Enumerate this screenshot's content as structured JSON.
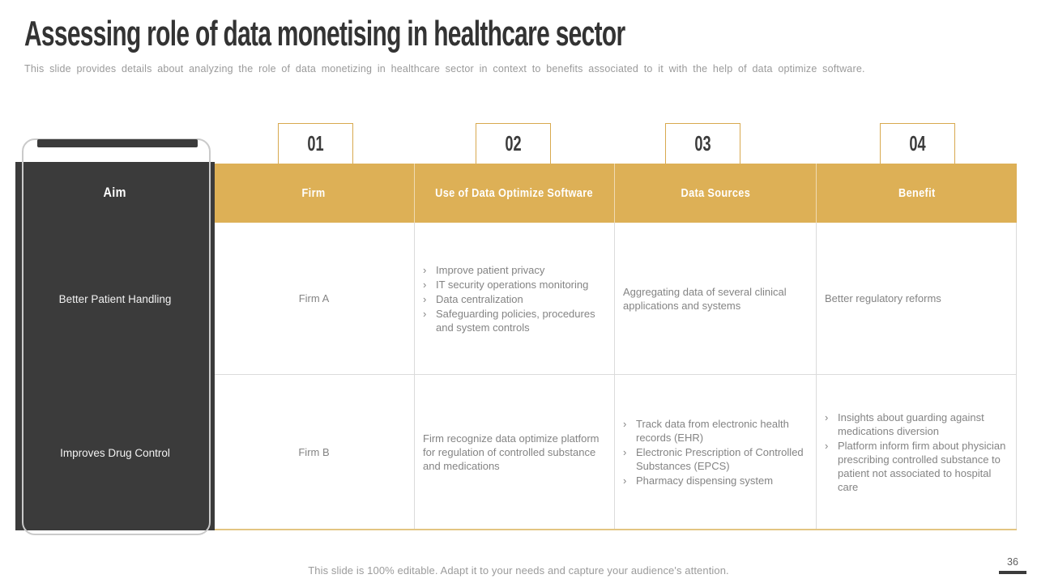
{
  "slide": {
    "title": "Assessing role of data monetising in healthcare sector",
    "subtitle": "This slide provides  details about analyzing the role of data monetizing in healthcare sector in context to benefits associated to it with the help of data optimize software.",
    "footer": "This slide is 100% editable. Adapt it to your needs and capture your audience's attention.",
    "page_number": "36"
  },
  "colors": {
    "gold": "#DDB056",
    "dark_panel": "#3B3B3B",
    "body_text": "#848484",
    "cell_border": "#DBDBDB",
    "bottom_rule": "#E3C582"
  },
  "icons": {
    "bullet": "›"
  },
  "badges": [
    "01",
    "02",
    "03",
    "04"
  ],
  "table": {
    "aim_header": "Aim",
    "headers": [
      "Firm",
      "Use of Data Optimize Software",
      "Data Sources",
      "Benefit"
    ],
    "rows": [
      {
        "aim": "Better Patient Handling",
        "firm": "Firm A",
        "use_items": [
          "Improve patient privacy",
          "IT security operations monitoring",
          "Data centralization",
          "Safeguarding policies, procedures and system controls"
        ],
        "sources_text": "Aggregating data of several clinical applications and systems",
        "benefit_text": "Better regulatory reforms"
      },
      {
        "aim": "Improves Drug Control",
        "firm": "Firm B",
        "use_text": "Firm recognize data optimize platform for regulation of controlled substance and medications",
        "sources_items": [
          "Track data from electronic health records (EHR)",
          "Electronic Prescription of Controlled Substances (EPCS)",
          "Pharmacy dispensing system"
        ],
        "benefit_items": [
          "Insights about guarding against medications diversion",
          "Platform inform firm  about physician prescribing controlled substance to patient not associated to hospital care"
        ]
      }
    ]
  }
}
